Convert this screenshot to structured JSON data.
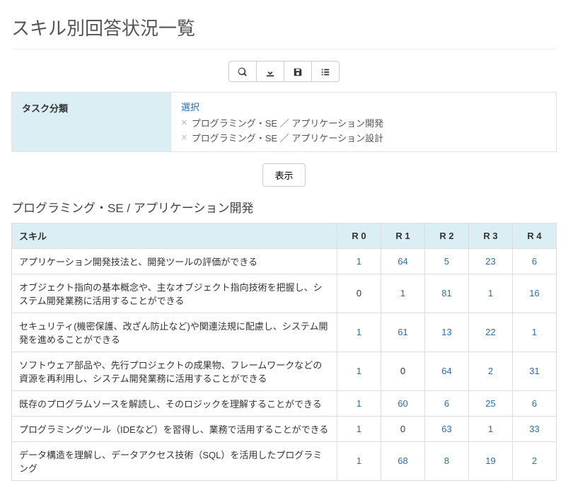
{
  "page": {
    "title": "スキル別回答状況一覧"
  },
  "toolbar": {
    "search": "search",
    "download": "download",
    "save": "save",
    "list": "list"
  },
  "filter": {
    "label": "タスク分類",
    "select_label": "選択",
    "chips": [
      "プログラミング・SE ／ アプリケーション開発",
      "プログラミング・SE ／ アプリケーション設計"
    ]
  },
  "show_button": "表示",
  "section": {
    "title": "プログラミング・SE / アプリケーション開発",
    "columns": [
      "スキル",
      "R 0",
      "R 1",
      "R 2",
      "R 3",
      "R 4"
    ],
    "rows": [
      {
        "skill": "アプリケーション開発技法と、開発ツールの評価ができる",
        "vals": [
          1,
          64,
          5,
          23,
          6
        ],
        "links": [
          true,
          true,
          true,
          true,
          true
        ]
      },
      {
        "skill": "オブジェクト指向の基本概念や、主なオブジェクト指向技術を把握し、システム開発業務に活用することができる",
        "vals": [
          0,
          1,
          81,
          1,
          16
        ],
        "links": [
          false,
          true,
          true,
          true,
          true
        ]
      },
      {
        "skill": "セキュリティ(機密保護、改ざん防止など)や関連法規に配慮し、システム開発を進めることができる",
        "vals": [
          1,
          61,
          13,
          22,
          1
        ],
        "links": [
          true,
          true,
          true,
          true,
          true
        ]
      },
      {
        "skill": "ソフトウェア部品や、先行プロジェクトの成果物、フレームワークなどの資源を再利用し、システム開発業務に活用することができる",
        "vals": [
          1,
          0,
          64,
          2,
          31
        ],
        "links": [
          true,
          false,
          true,
          true,
          true
        ]
      },
      {
        "skill": "既存のプログラムソースを解読し、そのロジックを理解することができる",
        "vals": [
          1,
          60,
          6,
          25,
          6
        ],
        "links": [
          true,
          true,
          true,
          true,
          true
        ]
      },
      {
        "skill": "プログラミングツール（IDEなど）を習得し、業務で活用することができる",
        "vals": [
          1,
          0,
          63,
          1,
          33
        ],
        "links": [
          true,
          false,
          true,
          true,
          true
        ]
      },
      {
        "skill": "データ構造を理解し、データアクセス技術（SQL）を活用したプログラミング",
        "vals": [
          1,
          68,
          8,
          19,
          2
        ],
        "links": [
          true,
          true,
          true,
          true,
          true
        ]
      }
    ]
  },
  "colors": {
    "header_bg": "#dbeef4",
    "link": "#2a6da9",
    "border": "#ddd"
  }
}
